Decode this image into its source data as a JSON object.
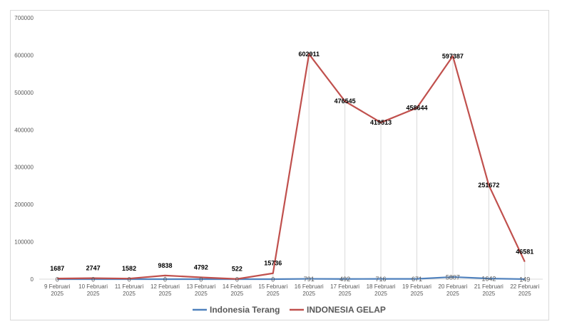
{
  "chart_data": {
    "type": "line",
    "categories": [
      [
        "9 Februari",
        "2025"
      ],
      [
        "10 Februari",
        "2025"
      ],
      [
        "11 Februari",
        "2025"
      ],
      [
        "12 Februari",
        "2025"
      ],
      [
        "13 Februari",
        "2025"
      ],
      [
        "14 Februari",
        "2025"
      ],
      [
        "15 Februari",
        "2025"
      ],
      [
        "16 Februari",
        "2025"
      ],
      [
        "17 Februari",
        "2025"
      ],
      [
        "18 Februari",
        "2025"
      ],
      [
        "19 Februari",
        "2025"
      ],
      [
        "20 Februari",
        "2025"
      ],
      [
        "21 Februari",
        "2025"
      ],
      [
        "22 Februari",
        "2025"
      ]
    ],
    "series": [
      {
        "name": "Indonesia Terang",
        "color": "#4f81bd",
        "values": [
          0,
          0,
          0,
          0,
          0,
          0,
          0,
          791,
          492,
          716,
          671,
          5807,
          1642,
          149
        ],
        "labels": [
          "0",
          "0",
          "0",
          "0",
          "0",
          "0",
          "0",
          "791",
          "492",
          "716",
          "671",
          "5807",
          "1642",
          "149"
        ]
      },
      {
        "name": "INDONESIA GELAP",
        "color": "#c0504d",
        "values": [
          1687,
          2747,
          1582,
          9838,
          4792,
          522,
          15736,
          602911,
          476545,
          419513,
          458644,
          597387,
          251672,
          46581
        ],
        "labels": [
          "1687",
          "2747",
          "1582",
          "9838",
          "4792",
          "522",
          "15736",
          "602911",
          "476545",
          "419513",
          "458644",
          "597387",
          "251672",
          "46581"
        ]
      }
    ],
    "yticks": [
      "0",
      "100000",
      "200000",
      "300000",
      "400000",
      "500000",
      "600000",
      "700000"
    ],
    "ylim": [
      0,
      700000
    ],
    "grid": "vertical-drop-lines",
    "legend": "bottom"
  }
}
